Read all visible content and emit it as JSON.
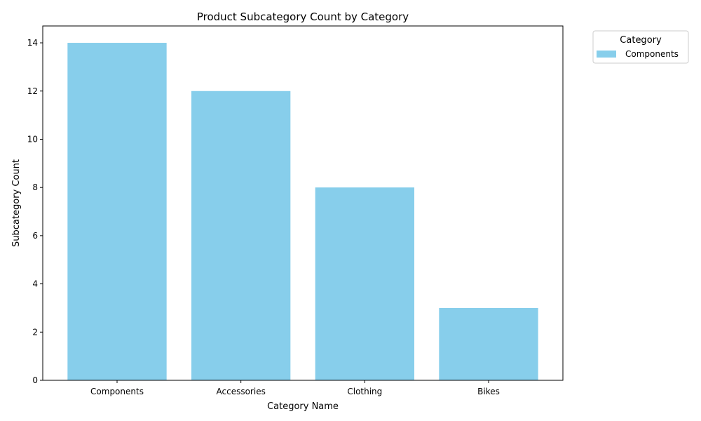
{
  "chart_data": {
    "type": "bar",
    "title": "Product Subcategory Count by Category",
    "xlabel": "Category Name",
    "ylabel": "Subcategory Count",
    "categories": [
      "Components",
      "Accessories",
      "Clothing",
      "Bikes"
    ],
    "values": [
      14,
      12,
      8,
      3
    ],
    "ylim": [
      0,
      14.7
    ],
    "yticks": [
      "0",
      "2",
      "4",
      "6",
      "8",
      "10",
      "12",
      "14"
    ],
    "bar_color": "#87CEEB",
    "grid": false,
    "legend": {
      "title": "Category",
      "entries": [
        "Components"
      ],
      "placement": "outside-top-right"
    }
  }
}
